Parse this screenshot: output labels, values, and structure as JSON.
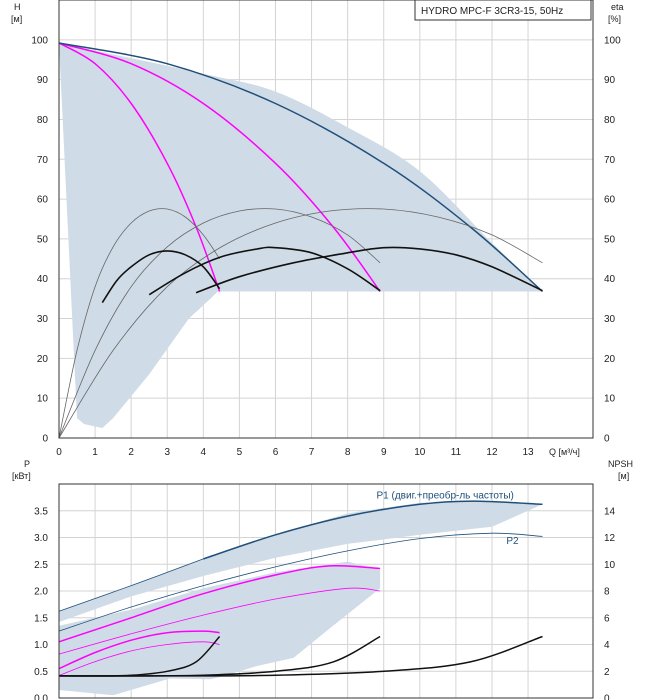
{
  "chart_data": {
    "type": "line",
    "title": "HYDRO MPC-F 3CR3-15, 50Hz",
    "top": {
      "left_axis": {
        "label_top": "H",
        "label_unit": "[м]",
        "ticks": [
          0,
          10,
          20,
          30,
          40,
          50,
          60,
          70,
          80,
          90,
          100
        ],
        "ylim": [
          0,
          110
        ]
      },
      "right_axis": {
        "label_top": "eta",
        "label_unit": "[%]",
        "ticks": [
          0,
          10,
          20,
          30,
          40,
          50,
          60,
          70,
          80,
          90,
          100
        ],
        "ylim": [
          0,
          110
        ]
      },
      "x_axis": {
        "label": "Q [м³/ч]",
        "ticks": [
          0,
          1,
          2,
          3,
          4,
          5,
          6,
          7,
          8,
          9,
          10,
          11,
          12,
          13
        ],
        "xlim": [
          0,
          14.8
        ]
      },
      "envelope": {
        "upper": [
          [
            0,
            99.2
          ],
          [
            4,
            91.5
          ],
          [
            6,
            87
          ],
          [
            8,
            78
          ],
          [
            10,
            67
          ],
          [
            12,
            49
          ],
          [
            13.4,
            36.8
          ]
        ],
        "lower": [
          [
            13.4,
            36.8
          ],
          [
            4.4,
            36.8
          ],
          [
            4.2,
            35
          ],
          [
            3.6,
            30
          ],
          [
            2.5,
            16
          ],
          [
            1.5,
            5
          ],
          [
            1.2,
            2.5
          ],
          [
            0.7,
            3.5
          ],
          [
            0.5,
            5
          ]
        ]
      },
      "series": [
        {
          "name": "H 1 pump",
          "color": "#ff00ff",
          "width": 1.5,
          "points": [
            [
              0,
              99.2
            ],
            [
              1,
              94
            ],
            [
              2,
              84
            ],
            [
              3,
              69
            ],
            [
              3.8,
              53
            ],
            [
              4.45,
              36.8
            ]
          ]
        },
        {
          "name": "H 2 pumps",
          "color": "#ff00ff",
          "width": 1.5,
          "points": [
            [
              0,
              99.2
            ],
            [
              2,
              94
            ],
            [
              4,
              84
            ],
            [
              6,
              69
            ],
            [
              7.6,
              53
            ],
            [
              8.9,
              36.8
            ]
          ]
        },
        {
          "name": "H 3 pumps",
          "color": "#1f4f7a",
          "width": 1.5,
          "points": [
            [
              0,
              99.2
            ],
            [
              3,
              94
            ],
            [
              6,
              84
            ],
            [
              9,
              69
            ],
            [
              11.4,
              53
            ],
            [
              13.4,
              36.8
            ]
          ]
        },
        {
          "name": "eta 1 pump",
          "color": "#666666",
          "width": 0.8,
          "points": [
            [
              0,
              0
            ],
            [
              0.5,
              22
            ],
            [
              1,
              38
            ],
            [
              1.5,
              48
            ],
            [
              2,
              54
            ],
            [
              2.5,
              57
            ],
            [
              3,
              57.5
            ],
            [
              3.5,
              55.5
            ],
            [
              4,
              51
            ],
            [
              4.45,
              45
            ]
          ]
        },
        {
          "name": "eta 2 pumps",
          "color": "#666666",
          "width": 0.8,
          "points": [
            [
              0,
              0
            ],
            [
              1,
              22
            ],
            [
              2,
              38
            ],
            [
              3,
              48
            ],
            [
              4,
              54
            ],
            [
              5,
              57
            ],
            [
              6,
              57.5
            ],
            [
              7,
              55.5
            ],
            [
              8,
              51
            ],
            [
              8.9,
              44
            ]
          ]
        },
        {
          "name": "eta 3 pumps",
          "color": "#666666",
          "width": 0.8,
          "points": [
            [
              0,
              0
            ],
            [
              1.5,
              22
            ],
            [
              3,
              38
            ],
            [
              4.5,
              48
            ],
            [
              6,
              54
            ],
            [
              7.5,
              57
            ],
            [
              9,
              57.5
            ],
            [
              10.5,
              55.5
            ],
            [
              12,
              51
            ],
            [
              13.4,
              44
            ]
          ]
        },
        {
          "name": "eta op 1 pump",
          "color": "#111111",
          "width": 1.6,
          "points": [
            [
              1.2,
              34
            ],
            [
              1.6,
              39.5
            ],
            [
              2,
              43
            ],
            [
              2.5,
              46
            ],
            [
              3,
              47
            ],
            [
              3.5,
              46
            ],
            [
              4,
              43
            ],
            [
              4.45,
              37.5
            ]
          ]
        },
        {
          "name": "eta op 2 pumps",
          "color": "#111111",
          "width": 1.6,
          "points": [
            [
              2.5,
              36
            ],
            [
              3.5,
              41.5
            ],
            [
              4.5,
              45.5
            ],
            [
              5.5,
              47.5
            ],
            [
              6,
              47.8
            ],
            [
              7,
              46.5
            ],
            [
              8,
              42.5
            ],
            [
              8.9,
              37
            ]
          ]
        },
        {
          "name": "eta op 3 pumps",
          "color": "#111111",
          "width": 1.6,
          "points": [
            [
              3.8,
              36.5
            ],
            [
              5,
              40.5
            ],
            [
              6.5,
              44
            ],
            [
              8,
              46.5
            ],
            [
              9,
              47.8
            ],
            [
              10,
              47.5
            ],
            [
              11,
              46
            ],
            [
              12,
              43
            ],
            [
              13.4,
              37
            ]
          ]
        }
      ]
    },
    "bottom": {
      "left_axis": {
        "label_top": "P",
        "label_unit": "[кВт]",
        "ticks": [
          0.0,
          0.5,
          1.0,
          1.5,
          2.0,
          2.5,
          3.0,
          3.5
        ],
        "tick_labels": [
          "0.0",
          "0.5",
          "1.0",
          "1.5",
          "2.0",
          "2.5",
          "3.0",
          "3.5"
        ],
        "ylim": [
          0,
          4
        ]
      },
      "right_axis": {
        "label_top": "NPSH",
        "label_unit": "[м]",
        "ticks": [
          0,
          2,
          4,
          6,
          8,
          10,
          12,
          14
        ],
        "ylim": [
          0,
          16
        ]
      },
      "annotations": [
        {
          "text": "P1 (двиг.+преобр-ль частоты)",
          "x": 8.8,
          "y": 3.73,
          "color": "#1f4f7a"
        },
        {
          "text": "P2",
          "x": 12.4,
          "y": 2.88,
          "color": "#1f4f7a"
        }
      ],
      "envelopes": [
        {
          "points": [
            [
              0,
              1.62
            ],
            [
              2,
              2.1
            ],
            [
              4,
              2.6
            ],
            [
              6,
              3.05
            ],
            [
              8,
              3.45
            ],
            [
              10,
              3.65
            ],
            [
              12,
              3.68
            ],
            [
              13.4,
              3.62
            ],
            [
              12,
              3.2
            ],
            [
              10,
              3.05
            ],
            [
              8,
              2.88
            ],
            [
              6,
              2.62
            ],
            [
              4,
              2.28
            ],
            [
              2,
              1.9
            ],
            [
              0,
              1.42
            ]
          ]
        },
        {
          "points": [
            [
              0,
              1.35
            ],
            [
              2,
              1.65
            ],
            [
              4,
              2.05
            ],
            [
              6,
              2.35
            ],
            [
              8,
              2.55
            ],
            [
              8.9,
              2.4
            ],
            [
              8.9,
              2.05
            ],
            [
              7.5,
              1.3
            ],
            [
              6.5,
              0.75
            ],
            [
              5.5,
              0.6
            ],
            [
              4.5,
              0.4
            ],
            [
              4.2,
              0.35
            ],
            [
              0,
              0.4
            ]
          ]
        },
        {
          "points": [
            [
              0,
              0.62
            ],
            [
              1,
              0.95
            ],
            [
              2,
              1.15
            ],
            [
              3,
              1.2
            ],
            [
              4.45,
              1.15
            ],
            [
              4.45,
              1.0
            ],
            [
              4,
              0.7
            ],
            [
              3,
              0.35
            ],
            [
              2.5,
              0.25
            ],
            [
              1.5,
              0.05
            ],
            [
              0,
              0.15
            ]
          ]
        }
      ],
      "series": [
        {
          "name": "P1 3 pumps",
          "color": "#1f4f7a",
          "width": 1.5,
          "points": [
            [
              4,
              2.6
            ],
            [
              6,
              3.05
            ],
            [
              8,
              3.4
            ],
            [
              10,
              3.62
            ],
            [
              11.5,
              3.68
            ],
            [
              13.4,
              3.62
            ]
          ]
        },
        {
          "name": "P1 3 pumps thin",
          "color": "#1f4f7a",
          "width": 0.8,
          "points": [
            [
              0,
              1.62
            ],
            [
              2,
              2.1
            ],
            [
              4,
              2.6
            ]
          ]
        },
        {
          "name": "P2 3 pumps",
          "color": "#1f4f7a",
          "width": 0.8,
          "points": [
            [
              0,
              1.25
            ],
            [
              2,
              1.7
            ],
            [
              4,
              2.1
            ],
            [
              6,
              2.45
            ],
            [
              8,
              2.75
            ],
            [
              10,
              2.98
            ],
            [
              12,
              3.08
            ],
            [
              13.4,
              3.02
            ]
          ]
        },
        {
          "name": "P1 2 pumps",
          "color": "#ff00ff",
          "width": 1.5,
          "points": [
            [
              0,
              1.05
            ],
            [
              2,
              1.5
            ],
            [
              4,
              1.95
            ],
            [
              6,
              2.3
            ],
            [
              7.5,
              2.47
            ],
            [
              8.9,
              2.42
            ]
          ]
        },
        {
          "name": "P2 2 pumps",
          "color": "#ff00ff",
          "width": 0.8,
          "points": [
            [
              0,
              0.82
            ],
            [
              2,
              1.2
            ],
            [
              4,
              1.55
            ],
            [
              6,
              1.85
            ],
            [
              8,
              2.05
            ],
            [
              8.9,
              2.0
            ]
          ]
        },
        {
          "name": "P1 1 pump",
          "color": "#ff00ff",
          "width": 1.5,
          "points": [
            [
              0,
              0.55
            ],
            [
              1,
              0.85
            ],
            [
              2,
              1.08
            ],
            [
              3,
              1.22
            ],
            [
              4,
              1.25
            ],
            [
              4.45,
              1.22
            ]
          ]
        },
        {
          "name": "P2 1 pump",
          "color": "#ff00ff",
          "width": 0.8,
          "points": [
            [
              0,
              0.42
            ],
            [
              1,
              0.68
            ],
            [
              2,
              0.88
            ],
            [
              3,
              1.0
            ],
            [
              4,
              1.05
            ],
            [
              4.45,
              1.0
            ]
          ]
        },
        {
          "name": "NPSH 1 pump",
          "color": "#111111",
          "width": 1.5,
          "axis": "right",
          "points": [
            [
              0,
              1.65
            ],
            [
              1,
              1.65
            ],
            [
              2,
              1.7
            ],
            [
              3,
              2.0
            ],
            [
              3.8,
              2.7
            ],
            [
              4.45,
              4.6
            ]
          ]
        },
        {
          "name": "NPSH 2 pumps",
          "color": "#111111",
          "width": 1.5,
          "axis": "right",
          "points": [
            [
              0,
              1.65
            ],
            [
              2,
              1.65
            ],
            [
              4,
              1.7
            ],
            [
              6,
              2.0
            ],
            [
              7.6,
              2.7
            ],
            [
              8.9,
              4.6
            ]
          ]
        },
        {
          "name": "NPSH 3 pumps",
          "color": "#111111",
          "width": 1.5,
          "axis": "right",
          "points": [
            [
              0,
              1.65
            ],
            [
              3,
              1.65
            ],
            [
              6,
              1.7
            ],
            [
              9,
              2.0
            ],
            [
              11.4,
              2.7
            ],
            [
              13.4,
              4.6
            ]
          ]
        }
      ]
    }
  }
}
